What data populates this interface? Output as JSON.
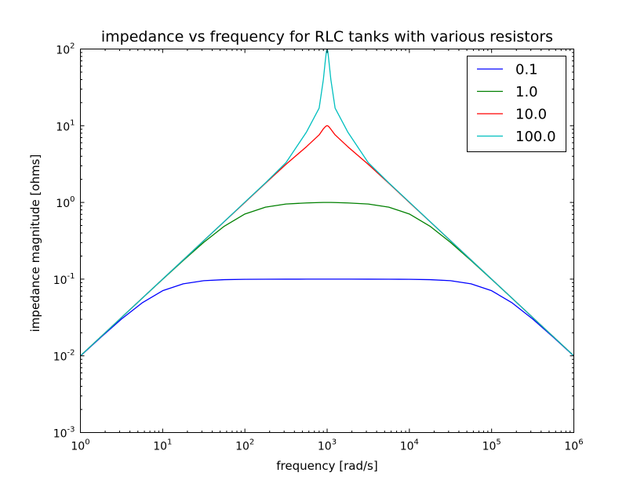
{
  "chart_data": {
    "type": "line",
    "title": "impedance vs frequency for RLC tanks with various resistors",
    "xlabel": "frequency [rad/s]",
    "ylabel": "impedance magnitude [ohms]",
    "xscale": "log",
    "yscale": "log",
    "xlim": [
      1,
      1000000
    ],
    "ylim": [
      0.001,
      100
    ],
    "grid": false,
    "legend_position": "top-right",
    "x_ticks": [
      {
        "value": 1,
        "base": "10",
        "exp": "0"
      },
      {
        "value": 10,
        "base": "10",
        "exp": "1"
      },
      {
        "value": 100,
        "base": "10",
        "exp": "2"
      },
      {
        "value": 1000,
        "base": "10",
        "exp": "3"
      },
      {
        "value": 10000,
        "base": "10",
        "exp": "4"
      },
      {
        "value": 100000,
        "base": "10",
        "exp": "5"
      },
      {
        "value": 1000000,
        "base": "10",
        "exp": "6"
      }
    ],
    "y_ticks": [
      {
        "value": 0.001,
        "base": "10",
        "exp": "-3"
      },
      {
        "value": 0.01,
        "base": "10",
        "exp": "-2"
      },
      {
        "value": 0.1,
        "base": "10",
        "exp": "-1"
      },
      {
        "value": 1,
        "base": "10",
        "exp": "0"
      },
      {
        "value": 10,
        "base": "10",
        "exp": "1"
      },
      {
        "value": 100,
        "base": "10",
        "exp": "2"
      }
    ],
    "x": [
      1,
      1.78,
      3.16,
      5.62,
      10,
      17.8,
      31.6,
      56.2,
      100,
      178,
      316,
      562,
      800,
      900,
      950,
      980,
      1000,
      1020,
      1050,
      1110,
      1250,
      1780,
      3160,
      5620,
      10000,
      17800,
      31600,
      56200,
      100000,
      178000,
      316000,
      562000,
      1000000
    ],
    "series": [
      {
        "name": "0.1",
        "color": "#0000ff",
        "values": [
          0.00995,
          0.0175,
          0.0302,
          0.049,
          0.0707,
          0.0868,
          0.0954,
          0.0985,
          0.0995,
          0.0998,
          0.0999,
          0.1,
          0.1,
          0.1,
          0.1,
          0.1,
          0.1,
          0.1,
          0.1,
          0.1,
          0.1,
          0.1,
          0.0999,
          0.0998,
          0.0995,
          0.0985,
          0.0954,
          0.0868,
          0.0707,
          0.049,
          0.0302,
          0.0175,
          0.00995
        ]
      },
      {
        "name": "1.0",
        "color": "#008000",
        "values": [
          0.01,
          0.0178,
          0.0316,
          0.0561,
          0.0995,
          0.175,
          0.302,
          0.49,
          0.707,
          0.868,
          0.954,
          0.985,
          0.996,
          0.999,
          1.0,
          1.0,
          1.0,
          1.0,
          1.0,
          0.999,
          0.996,
          0.985,
          0.954,
          0.868,
          0.707,
          0.49,
          0.302,
          0.175,
          0.0995,
          0.0561,
          0.0316,
          0.0178,
          0.01
        ]
      },
      {
        "name": "10.0",
        "color": "#ff0000",
        "values": [
          0.01,
          0.0178,
          0.0316,
          0.0562,
          0.1,
          0.178,
          0.317,
          0.563,
          1.0,
          1.78,
          3.14,
          5.34,
          7.6,
          9.1,
          9.7,
          9.95,
          10.0,
          9.95,
          9.7,
          9.0,
          7.6,
          5.34,
          3.14,
          1.78,
          1.0,
          0.563,
          0.317,
          0.178,
          0.1,
          0.0562,
          0.0316,
          0.0178,
          0.01
        ]
      },
      {
        "name": "100.0",
        "color": "#00bfbf",
        "values": [
          0.01,
          0.0178,
          0.0316,
          0.0562,
          0.1,
          0.178,
          0.317,
          0.565,
          1.01,
          1.8,
          3.3,
          8.3,
          17.0,
          40.0,
          70.0,
          93.0,
          100.0,
          93.0,
          70.0,
          40.0,
          17.0,
          8.3,
          3.3,
          1.8,
          1.01,
          0.565,
          0.317,
          0.178,
          0.1,
          0.0562,
          0.0316,
          0.0178,
          0.01
        ]
      }
    ]
  }
}
